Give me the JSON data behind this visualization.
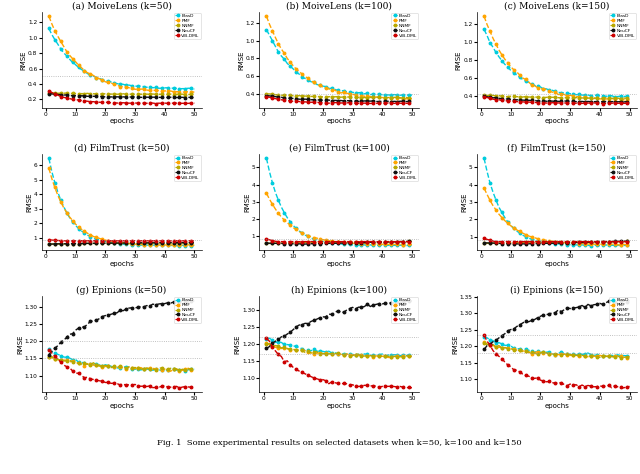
{
  "figure_title": "Fig. 1  Some experimental results on selected datasets when k=50, k=100 and k=150",
  "subplots": [
    {
      "title": "(a) MoiveLens (k=50)",
      "ylabel": "RMSE",
      "xlabel": "epochs"
    },
    {
      "title": "(b) MoiveLens (k=100)",
      "ylabel": "RMSE",
      "xlabel": "epochs"
    },
    {
      "title": "(c) MoiveLens (k=150)",
      "ylabel": "RMSE",
      "xlabel": "epochs"
    },
    {
      "title": "(d) FilmTrust (k=50)",
      "ylabel": "RMSE",
      "xlabel": "epochs"
    },
    {
      "title": "(e) FilmTrust (k=100)",
      "ylabel": "RMSE",
      "xlabel": "epochs"
    },
    {
      "title": "(f) FilmTrust (k=150)",
      "ylabel": "RMSE",
      "xlabel": "epochs"
    },
    {
      "title": "(g) Epinions (k=50)",
      "ylabel": "RMSE",
      "xlabel": "epochs"
    },
    {
      "title": "(h) Epinions (k=100)",
      "ylabel": "RMSE",
      "xlabel": "epochs"
    },
    {
      "title": "(i) Epinions (k=150)",
      "ylabel": "RMSE",
      "xlabel": "epochs"
    }
  ],
  "methods": [
    "BiasD",
    "PMF",
    "NNMF",
    "NeuCF",
    "VIB-DML"
  ],
  "colors_row1": [
    "#00CCDD",
    "#FFA500",
    "#B8A800",
    "#111111",
    "#CC0000"
  ],
  "colors_row2": [
    "#00CCDD",
    "#FFA500",
    "#B8A800",
    "#111111",
    "#CC0000"
  ],
  "colors_row3": [
    "#00CCDD",
    "#FFA500",
    "#B8A800",
    "#111111",
    "#CC0000"
  ],
  "markersize": 1.8,
  "linewidth": 1.0,
  "epochs": 50,
  "seed": 42
}
